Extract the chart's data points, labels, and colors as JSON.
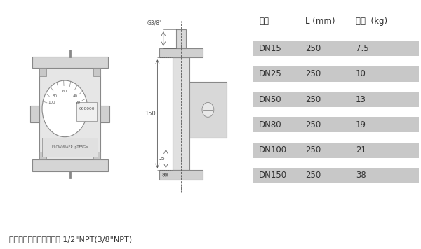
{
  "table_header": [
    "口径",
    "L (mm)",
    "重量  (kg)"
  ],
  "table_rows": [
    [
      "DN15",
      "250",
      "7.5"
    ],
    [
      "DN25",
      "250",
      "10"
    ],
    [
      "DN50",
      "250",
      "13"
    ],
    [
      "DN80",
      "250",
      "19"
    ],
    [
      "DN100",
      "250",
      "21"
    ],
    [
      "DN150",
      "250",
      "38"
    ]
  ],
  "row_bg_color": "#c8c8c8",
  "text_color": "#333333",
  "bg_color": "#ffffff",
  "footer_text": "（保温夹套型）夹套接口 1/2”NPT(3/8”NPT)",
  "gray": "#888888",
  "dgray": "#555555",
  "lgray": "#d8d8d8",
  "fig_width": 6.0,
  "fig_height": 3.56,
  "dpi": 100
}
